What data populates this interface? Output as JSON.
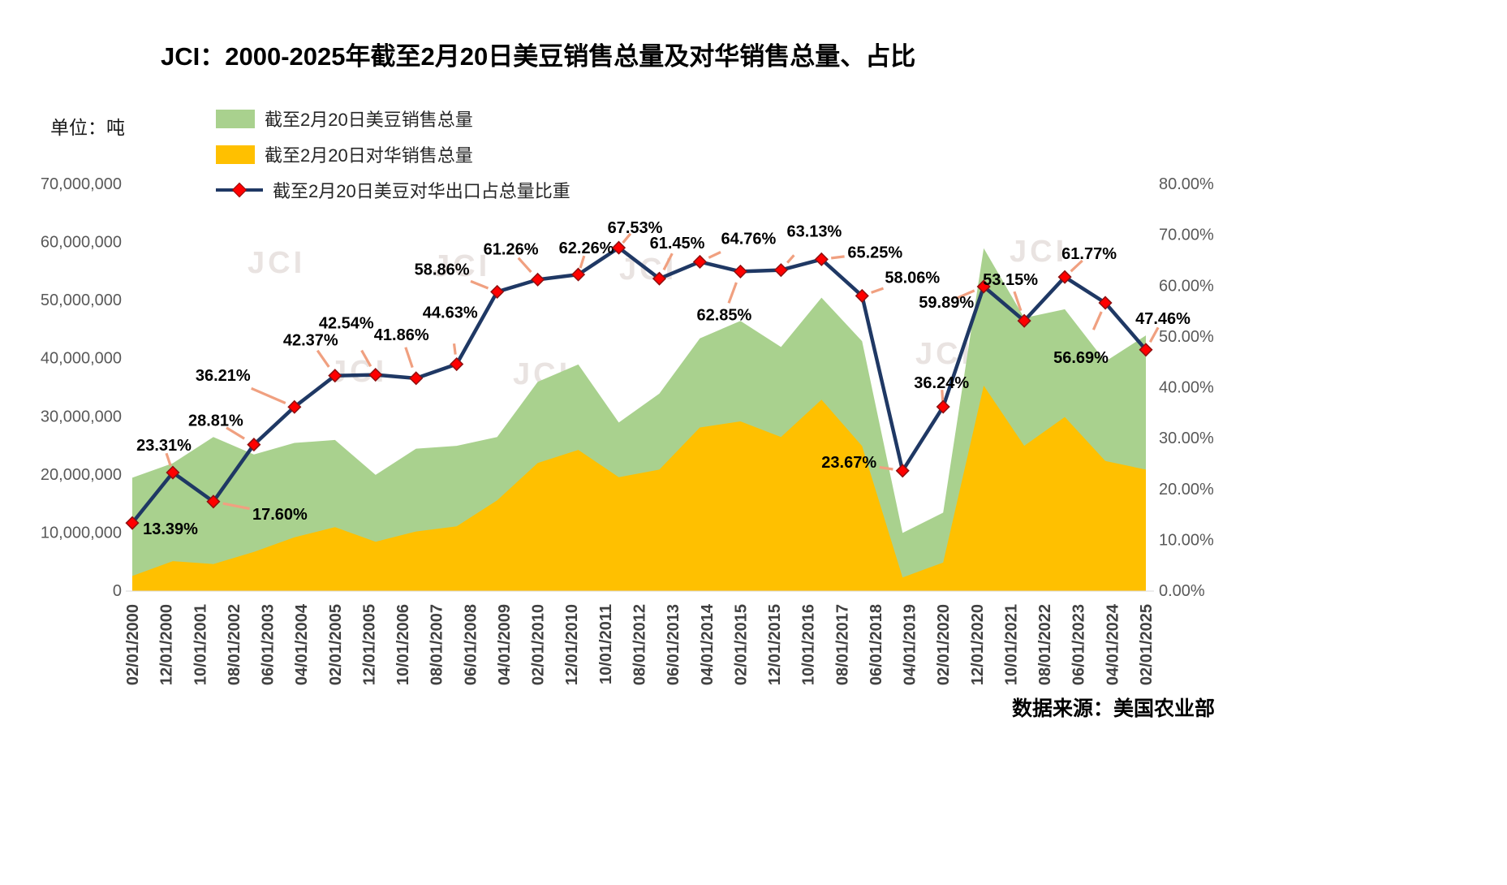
{
  "title": "JCI：2000-2025年截至2月20日美豆销售总量及对华销售总量、占比",
  "unit_label": "单位：吨",
  "source": "数据来源：美国农业部",
  "watermark": "JCI",
  "legend": {
    "total": "截至2月20日美豆销售总量",
    "china": "截至2月20日对华销售总量",
    "share": "截至2月20日美豆对华出口占总量比重"
  },
  "colors": {
    "total_area": "#A9D18E",
    "china_area": "#FFC000",
    "share_line": "#1F3864",
    "marker_fill": "#FF0000",
    "marker_stroke": "#8E1010",
    "leader": "#F0A080",
    "axis_text": "#595959",
    "x_axis_text": "#404040",
    "label_text": "#000000"
  },
  "chart_data": {
    "type": "combo",
    "title": "JCI：2000-2025年截至2月20日美豆销售总量及对华销售总量、占比",
    "ylabel_left": "单位：吨",
    "grid": false,
    "legend_position": "top-left",
    "years": [
      2000,
      2001,
      2002,
      2003,
      2004,
      2005,
      2006,
      2007,
      2008,
      2009,
      2010,
      2011,
      2012,
      2013,
      2014,
      2015,
      2016,
      2017,
      2018,
      2019,
      2020,
      2021,
      2022,
      2023,
      2024,
      2025
    ],
    "x_tick_labels": [
      "02/01/2000",
      "12/01/2000",
      "10/01/2001",
      "08/01/2002",
      "06/01/2003",
      "04/01/2004",
      "02/01/2005",
      "12/01/2005",
      "10/01/2006",
      "08/01/2007",
      "06/01/2008",
      "04/01/2009",
      "02/01/2010",
      "12/01/2010",
      "10/01/2011",
      "08/01/2012",
      "06/01/2013",
      "04/01/2014",
      "02/01/2015",
      "12/01/2015",
      "10/01/2016",
      "08/01/2017",
      "06/01/2018",
      "04/01/2019",
      "02/01/2020",
      "12/01/2020",
      "10/01/2021",
      "08/01/2022",
      "06/01/2023",
      "04/01/2024",
      "02/01/2025"
    ],
    "left_axis": {
      "min": 0,
      "max": 70000000,
      "step": 10000000
    },
    "right_axis": {
      "min": 0,
      "max": 80,
      "step": 10,
      "format": "percent2"
    },
    "series": [
      {
        "name": "截至2月20日美豆销售总量",
        "type": "area",
        "axis": "left",
        "color": "#A9D18E",
        "values": [
          19500000,
          22000000,
          26500000,
          23500000,
          25500000,
          26000000,
          20000000,
          24500000,
          25000000,
          26500000,
          36000000,
          39000000,
          29000000,
          34000000,
          43500000,
          46500000,
          42000000,
          50500000,
          43000000,
          10000000,
          13500000,
          59000000,
          47000000,
          48500000,
          39500000,
          44000000
        ]
      },
      {
        "name": "截至2月20日对华销售总量",
        "type": "area",
        "axis": "left",
        "color": "#FFC000",
        "values": [
          2600000,
          5150000,
          4650000,
          6750000,
          9250000,
          11000000,
          8500000,
          10250000,
          11150000,
          15600000,
          22050000,
          24300000,
          19600000,
          20900000,
          28150000,
          29200000,
          26500000,
          32950000,
          24950000,
          2350000,
          4900000,
          35350000,
          25000000,
          29950000,
          22400000,
          20900000
        ]
      },
      {
        "name": "截至2月20日美豆对华出口占总量比重",
        "type": "line",
        "axis": "right",
        "color": "#1F3864",
        "values_pct": [
          13.39,
          23.31,
          17.6,
          28.81,
          36.21,
          42.37,
          42.54,
          41.86,
          44.63,
          58.86,
          61.26,
          62.26,
          67.53,
          61.45,
          64.76,
          62.85,
          63.13,
          65.25,
          58.06,
          23.67,
          36.24,
          59.89,
          53.15,
          61.77,
          56.69,
          47.46
        ]
      }
    ]
  }
}
